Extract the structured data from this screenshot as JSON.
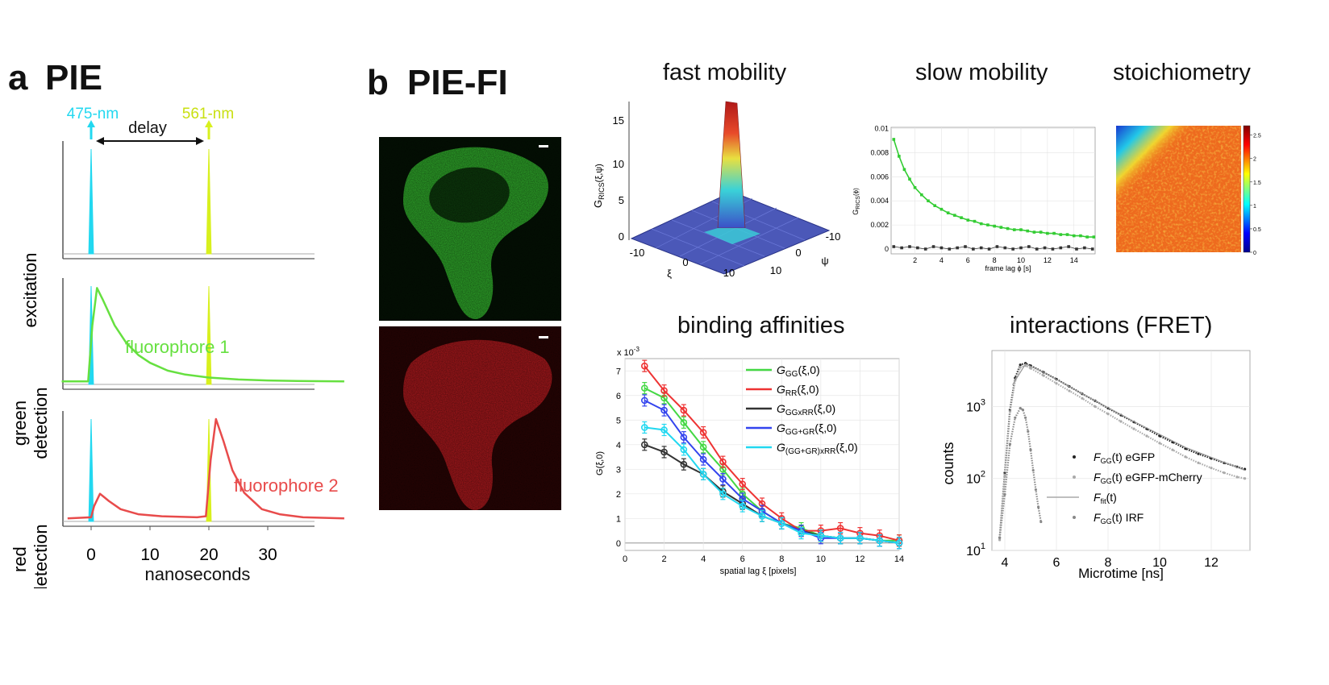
{
  "panel_a": {
    "letter": "a",
    "title": "PIE",
    "laser_blue": "475-nm",
    "laser_yellow": "561-nm",
    "delay_label": "delay",
    "row_labels": [
      [
        "excitation"
      ],
      [
        "green",
        "detection"
      ],
      [
        "red",
        "detection"
      ]
    ],
    "annot_green": "fluorophore 1",
    "annot_red": "fluorophore 2",
    "xlabel": "nanoseconds",
    "xticks": [
      "0",
      "10",
      "20",
      "30"
    ]
  },
  "panel_b": {
    "letter": "b",
    "title": "PIE-FI"
  },
  "colors": {
    "cyan": "#22d8f0",
    "yellow": "#d8f01e",
    "green": "#66e040",
    "red": "#e84b4b",
    "green_cell": "#2fa82a",
    "red_cell": "#a8181c"
  },
  "titles": {
    "fast": "fast mobility",
    "slow": "slow mobility",
    "stoich": "stoichiometry",
    "binding": "binding affinities",
    "fret": "interactions (FRET)"
  },
  "fast_mobility": {
    "zlabel_main": "G",
    "zlabel_sub": "RICS",
    "zlabel_args": "(ξ,ψ)",
    "zticks": [
      "0",
      "5",
      "10",
      "15"
    ],
    "xi_ticks": [
      "-10",
      "0",
      "10"
    ],
    "psi_ticks": [
      "-10",
      "0",
      "10"
    ],
    "xi_label": "ξ",
    "psi_label": "ψ"
  },
  "slow_mobility": {
    "ylabel_main": "G",
    "ylabel_sub": "RICS",
    "ylabel_args": "(ϕ)",
    "xlabel": "frame lag ϕ [s]",
    "yticks": [
      "0",
      "0.002",
      "0.004",
      "0.006",
      "0.008",
      "0.01"
    ],
    "xticks": [
      "2",
      "4",
      "6",
      "8",
      "10",
      "12",
      "14"
    ]
  },
  "stoichiometry": {
    "cbar_ticks": [
      "0",
      "0.5",
      "1",
      "1.5",
      "2",
      "2.5"
    ]
  },
  "fret_labels": {
    "xlabel": "Microtime [ns]",
    "ylabel": "counts",
    "yticks_base": [
      "10",
      "10",
      "10",
      "10"
    ],
    "yticks_exp": [
      "1",
      "2",
      "3",
      ""
    ],
    "xticks": [
      "4",
      "6",
      "8",
      "10",
      "12"
    ],
    "legend": [
      {
        "main": "F",
        "sub": "GG",
        "rest": "(t) eGFP"
      },
      {
        "main": "F",
        "sub": "GG",
        "rest": "(t) eGFP-mCherry"
      },
      {
        "main": "F",
        "sub": "fit",
        "rest": "(t)"
      },
      {
        "main": "F",
        "sub": "GG",
        "rest": "(t) IRF"
      }
    ]
  },
  "chart_data": [
    {
      "type": "line",
      "title": "PIE",
      "xlabel": "nanoseconds",
      "xlim": [
        -5,
        43
      ],
      "panels": [
        {
          "label": "excitation",
          "series": [
            {
              "name": "475-nm",
              "color": "#22d8f0",
              "x": [
                -0.4,
                0,
                0.4
              ],
              "y": [
                0,
                1,
                0
              ]
            },
            {
              "name": "561-nm",
              "color": "#d8f01e",
              "x": [
                19.6,
                20,
                20.4
              ],
              "y": [
                0,
                1,
                0
              ]
            }
          ]
        },
        {
          "label": "green detection",
          "series": [
            {
              "name": "475-nm",
              "color": "#22d8f0",
              "x": [
                -0.4,
                0,
                0.4
              ],
              "y": [
                0,
                1,
                0
              ]
            },
            {
              "name": "561-nm",
              "color": "#d8f01e",
              "x": [
                19.6,
                20,
                20.4
              ],
              "y": [
                0,
                1,
                0
              ]
            },
            {
              "name": "fluorophore 1",
              "color": "#66e040",
              "x": [
                -5,
                -0.5,
                0.2,
                1,
                2,
                4,
                6,
                8,
                10,
                13,
                16,
                20,
                25,
                30,
                35,
                43
              ],
              "y": [
                0.03,
                0.03,
                0.6,
                0.98,
                0.86,
                0.6,
                0.42,
                0.3,
                0.22,
                0.14,
                0.1,
                0.07,
                0.05,
                0.04,
                0.035,
                0.03
              ]
            }
          ]
        },
        {
          "label": "red detection",
          "series": [
            {
              "name": "475-nm",
              "color": "#22d8f0",
              "x": [
                -0.4,
                0,
                0.4
              ],
              "y": [
                0,
                1,
                0
              ]
            },
            {
              "name": "561-nm",
              "color": "#d8f01e",
              "x": [
                19.6,
                20,
                20.4
              ],
              "y": [
                0,
                1,
                0
              ]
            },
            {
              "name": "fluorophore 2",
              "color": "#e84b4b",
              "x": [
                -4,
                0,
                0.5,
                1.5,
                3,
                5,
                8,
                12,
                18,
                19.5,
                20.3,
                21.2,
                22.5,
                24,
                26,
                29,
                32,
                36,
                43
              ],
              "y": [
                0.03,
                0.04,
                0.15,
                0.27,
                0.2,
                0.12,
                0.07,
                0.05,
                0.04,
                0.05,
                0.6,
                1.0,
                0.78,
                0.5,
                0.28,
                0.12,
                0.07,
                0.04,
                0.03
              ]
            }
          ]
        }
      ]
    },
    {
      "type": "surface",
      "title": "fast mobility",
      "xlabel": "ξ",
      "ylabel": "ψ",
      "zlabel": "G_RICS(ξ,ψ)",
      "xlim": [
        -12,
        12
      ],
      "ylim": [
        -12,
        12
      ],
      "zlim": [
        0,
        17
      ],
      "peak": {
        "xi": 0,
        "psi": 0,
        "value": 17
      }
    },
    {
      "type": "scatter",
      "title": "slow mobility",
      "xlabel": "frame lag ϕ [s]",
      "ylabel": "G_RICS(ϕ)",
      "xlim": [
        0.2,
        15.6
      ],
      "ylim": [
        -0.0004,
        0.0101
      ],
      "series": [
        {
          "name": "",
          "color": "#33cc33",
          "x": [
            0.4,
            0.8,
            1.2,
            1.6,
            2,
            2.5,
            3,
            3.5,
            4,
            4.5,
            5,
            5.5,
            6,
            6.5,
            7,
            7.5,
            8,
            8.5,
            9,
            9.5,
            10,
            10.5,
            11,
            11.5,
            12,
            12.5,
            13,
            13.5,
            14,
            14.5,
            15,
            15.5
          ],
          "y": [
            0.0091,
            0.0077,
            0.0066,
            0.0058,
            0.0051,
            0.0045,
            0.004,
            0.0036,
            0.0033,
            0.003,
            0.0028,
            0.0026,
            0.0024,
            0.0023,
            0.0021,
            0.002,
            0.0019,
            0.0018,
            0.0017,
            0.0016,
            0.0016,
            0.0015,
            0.0014,
            0.0014,
            0.0013,
            0.0013,
            0.0012,
            0.0012,
            0.0011,
            0.0011,
            0.001,
            0.001
          ]
        },
        {
          "name": "",
          "color": "#333333",
          "x": [
            0.4,
            1,
            1.6,
            2.2,
            2.8,
            3.4,
            4,
            4.6,
            5.2,
            5.8,
            6.4,
            7,
            7.6,
            8.2,
            8.8,
            9.4,
            10,
            10.6,
            11.2,
            11.8,
            12.4,
            13,
            13.6,
            14.2,
            14.8,
            15.4
          ],
          "y": [
            0.0002,
            0.0001,
            0.0002,
            0.0001,
            0.0,
            0.0002,
            0.0001,
            0.0,
            0.0001,
            0.0002,
            0.0,
            0.0001,
            0.0,
            0.0002,
            0.0001,
            0.0,
            0.0001,
            0.0002,
            0.0,
            0.0001,
            0.0,
            0.0001,
            0.0002,
            0.0,
            0.0001,
            0.0
          ]
        }
      ]
    },
    {
      "type": "heatmap",
      "title": "stoichiometry",
      "colorbar_range": [
        0,
        2.7
      ],
      "colorbar_ticks": [
        0,
        0.5,
        1,
        1.5,
        2,
        2.5
      ]
    },
    {
      "type": "line",
      "title": "binding affinities",
      "xlabel": "spatial lag ξ [pixels]",
      "ylabel": "G(ξ,0)",
      "y_multiplier": "x 10",
      "y_multiplier_exp": "-3",
      "xlim": [
        0,
        14
      ],
      "ylim": [
        -0.3,
        7.5
      ],
      "xticks": [
        0,
        2,
        4,
        6,
        8,
        10,
        12,
        14
      ],
      "yticks": [
        0,
        1,
        2,
        3,
        4,
        5,
        6,
        7
      ],
      "legend_position": "top-right",
      "x": [
        1,
        2,
        3,
        4,
        5,
        6,
        7,
        8,
        9,
        10,
        11,
        12,
        13,
        14
      ],
      "series": [
        {
          "name": "G_GG(ξ,0)",
          "label_main": "G",
          "label_sub": "GG",
          "label_rest": "(ξ,0)",
          "color": "#44d844",
          "values": [
            6.3,
            5.9,
            4.9,
            3.9,
            3.0,
            2.0,
            1.3,
            0.8,
            0.6,
            0.3,
            0.2,
            0.2,
            0.1,
            0.1
          ]
        },
        {
          "name": "G_RR(ξ,0)",
          "label_main": "G",
          "label_sub": "RR",
          "label_rest": "(ξ,0)",
          "color": "#ee3333",
          "values": [
            7.2,
            6.2,
            5.4,
            4.5,
            3.3,
            2.4,
            1.6,
            1.0,
            0.5,
            0.5,
            0.6,
            0.4,
            0.3,
            0.1
          ]
        },
        {
          "name": "G_GGxRR(ξ,0)",
          "label_main": "G",
          "label_sub": "GGxRR",
          "label_rest": "(ξ,0)",
          "color": "#333333",
          "values": [
            4.0,
            3.7,
            3.2,
            2.8,
            2.1,
            1.6,
            1.1,
            0.8,
            0.5,
            0.3,
            0.2,
            0.2,
            0.1,
            0.0
          ]
        },
        {
          "name": "G_GG+GR(ξ,0)",
          "label_main": "G",
          "label_sub": "GG+GR",
          "label_rest": "(ξ,0)",
          "color": "#3344ee",
          "values": [
            5.8,
            5.4,
            4.3,
            3.4,
            2.6,
            1.8,
            1.3,
            0.8,
            0.5,
            0.2,
            0.2,
            0.2,
            0.1,
            0.0
          ]
        },
        {
          "name": "G_(GG+GR)xRR(ξ,0)",
          "label_main": "G",
          "label_sub": "(GG+GR)xRR",
          "label_rest": "(ξ,0)",
          "color": "#22d8f0",
          "values": [
            4.7,
            4.6,
            3.8,
            2.8,
            2.0,
            1.5,
            1.1,
            0.8,
            0.4,
            0.3,
            0.2,
            0.2,
            0.1,
            0.0
          ]
        }
      ]
    },
    {
      "type": "scatter",
      "title": "interactions (FRET)",
      "xlabel": "Microtime [ns]",
      "ylabel": "counts",
      "y_scale": "log",
      "xlim": [
        3.5,
        13.5
      ],
      "ylim": [
        10,
        6000
      ],
      "legend_position": "bottom-center",
      "series": [
        {
          "name": "F_GG(t) eGFP",
          "color": "#222222",
          "x": [
            3.8,
            4.0,
            4.2,
            4.4,
            4.6,
            4.8,
            5.0,
            5.5,
            6,
            6.5,
            7,
            7.5,
            8,
            8.5,
            9,
            9.5,
            10,
            10.5,
            11,
            11.5,
            12,
            12.5,
            13,
            13.3
          ],
          "y": [
            15,
            120,
            900,
            2500,
            3800,
            4000,
            3700,
            3000,
            2400,
            1900,
            1500,
            1200,
            950,
            760,
            610,
            490,
            390,
            320,
            260,
            220,
            190,
            165,
            145,
            135
          ]
        },
        {
          "name": "F_GG(t) eGFP-mCherry",
          "color": "#aaaaaa",
          "x": [
            3.8,
            4.0,
            4.2,
            4.4,
            4.6,
            4.8,
            5.0,
            5.5,
            6,
            6.5,
            7,
            7.5,
            8,
            8.5,
            9,
            9.5,
            10,
            10.5,
            11,
            11.5,
            12,
            12.5,
            13,
            13.3
          ],
          "y": [
            14,
            110,
            850,
            2300,
            3500,
            3700,
            3400,
            2700,
            2100,
            1650,
            1300,
            1000,
            790,
            620,
            490,
            390,
            310,
            250,
            200,
            165,
            140,
            120,
            105,
            100
          ]
        },
        {
          "name": "F_fit(t)",
          "color": "#999999",
          "x": [
            4.3,
            4.8,
            5.5,
            7,
            9,
            11,
            13.3
          ],
          "y": [
            2000,
            3900,
            3000,
            1500,
            620,
            270,
            130
          ]
        },
        {
          "name": "F_GG(t) IRF",
          "color": "#888888",
          "x": [
            3.8,
            4.0,
            4.2,
            4.4,
            4.6,
            4.7,
            4.8,
            4.9,
            5.0,
            5.1,
            5.2,
            5.3,
            5.4
          ],
          "y": [
            15,
            60,
            300,
            700,
            950,
            900,
            700,
            450,
            250,
            130,
            70,
            40,
            25
          ]
        }
      ]
    }
  ]
}
